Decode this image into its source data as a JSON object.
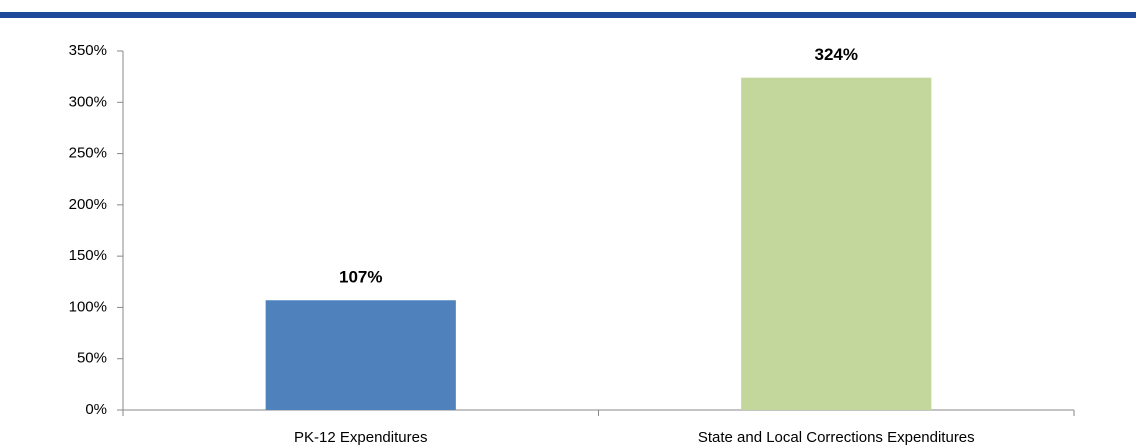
{
  "chart_data": {
    "type": "bar",
    "categories": [
      "PK-12 Expenditures",
      "State and Local Corrections Expenditures"
    ],
    "values": [
      107,
      324
    ],
    "value_labels": [
      "107%",
      "324%"
    ],
    "colors": [
      "#4f81bd",
      "#c3d69b"
    ],
    "ylim": [
      0,
      350
    ],
    "yticks": [
      {
        "value": 0,
        "label": "0%"
      },
      {
        "value": 50,
        "label": "50%"
      },
      {
        "value": 100,
        "label": "100%"
      },
      {
        "value": 150,
        "label": "150%"
      },
      {
        "value": 200,
        "label": "200%"
      },
      {
        "value": 250,
        "label": "250%"
      },
      {
        "value": 300,
        "label": "300%"
      },
      {
        "value": 350,
        "label": "350%"
      }
    ],
    "grid": false
  }
}
